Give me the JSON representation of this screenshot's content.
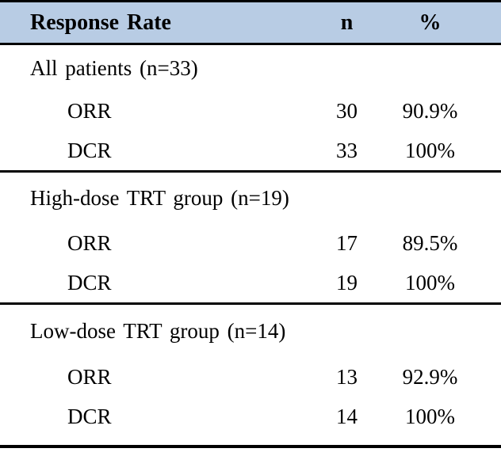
{
  "table": {
    "header": {
      "response_rate": "Response Rate",
      "n": "n",
      "pct": "%"
    },
    "sections": [
      {
        "label": "All patients (n=33)",
        "rows": [
          {
            "label": "ORR",
            "n": "30",
            "pct": "90.9%"
          },
          {
            "label": "DCR",
            "n": "33",
            "pct": "100%"
          }
        ]
      },
      {
        "label": "High-dose TRT group (n=19)",
        "rows": [
          {
            "label": "ORR",
            "n": "17",
            "pct": "89.5%"
          },
          {
            "label": "DCR",
            "n": "19",
            "pct": "100%"
          }
        ]
      },
      {
        "label": "Low-dose TRT group (n=14)",
        "rows": [
          {
            "label": "ORR",
            "n": "13",
            "pct": "92.9%"
          },
          {
            "label": "DCR",
            "n": "14",
            "pct": "100%"
          }
        ]
      }
    ],
    "colors": {
      "header_bg": "#b8cce4",
      "rule": "#000000",
      "background": "#ffffff",
      "text": "#000000"
    }
  },
  "chart_data": {
    "type": "table",
    "title": "Response Rate",
    "columns": [
      "Response Rate",
      "n",
      "%"
    ],
    "rows": [
      [
        "All patients (n=33)",
        "",
        ""
      ],
      [
        "ORR",
        "30",
        "90.9%"
      ],
      [
        "DCR",
        "33",
        "100%"
      ],
      [
        "High-dose TRT group (n=19)",
        "",
        ""
      ],
      [
        "ORR",
        "17",
        "89.5%"
      ],
      [
        "DCR",
        "19",
        "100%"
      ],
      [
        "Low-dose TRT group (n=14)",
        "",
        ""
      ],
      [
        "ORR",
        "13",
        "92.9%"
      ],
      [
        "DCR",
        "14",
        "100%"
      ]
    ]
  }
}
